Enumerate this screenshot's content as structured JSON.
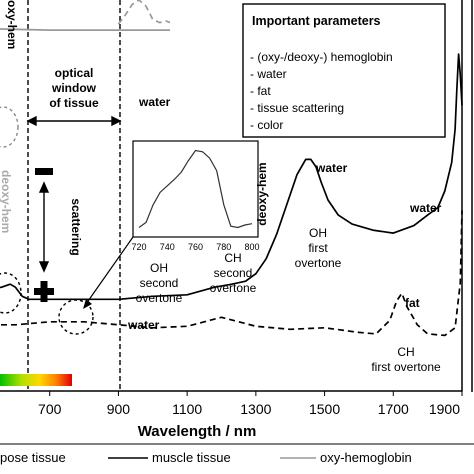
{
  "chart_data": {
    "type": "line",
    "xlabel": "Wavelength / nm",
    "xlim": [
      500,
      1900
    ],
    "x_ticks": [
      "700",
      "900",
      "1100",
      "1300",
      "1500",
      "1700",
      "1900"
    ],
    "series": [
      {
        "name": "muscle tissue",
        "style": "solid",
        "color": "#000000",
        "x": [
          500,
          560,
          585,
          600,
          620,
          640,
          700,
          800,
          900,
          1000,
          1100,
          1180,
          1230,
          1270,
          1300,
          1330,
          1360,
          1390,
          1420,
          1445,
          1460,
          1475,
          1490,
          1510,
          1540,
          1580,
          1640,
          1700,
          1760,
          1800,
          1830,
          1850,
          1870,
          1880,
          1885,
          1890,
          1895,
          1900
        ],
        "y": [
          0.33,
          0.345,
          0.355,
          0.345,
          0.315,
          0.305,
          0.305,
          0.305,
          0.305,
          0.315,
          0.32,
          0.345,
          0.355,
          0.365,
          0.39,
          0.44,
          0.52,
          0.62,
          0.72,
          0.77,
          0.77,
          0.745,
          0.695,
          0.635,
          0.585,
          0.555,
          0.535,
          0.525,
          0.55,
          0.585,
          0.61,
          0.665,
          0.76,
          0.87,
          1.0,
          1.12,
          1.05,
          0.95
        ]
      },
      {
        "name": "",
        "style": "dashed",
        "color": "#000000",
        "x": [
          500,
          600,
          700,
          800,
          900,
          1000,
          1100,
          1150,
          1200,
          1250,
          1300,
          1400,
          1500,
          1600,
          1650,
          1690,
          1710,
          1725,
          1740,
          1755,
          1770,
          1800,
          1850,
          1880,
          1895,
          1900
        ],
        "y": [
          0.22,
          0.22,
          0.23,
          0.23,
          0.22,
          0.21,
          0.215,
          0.23,
          0.245,
          0.23,
          0.215,
          0.205,
          0.21,
          0.195,
          0.19,
          0.235,
          0.3,
          0.325,
          0.28,
          0.25,
          0.22,
          0.19,
          0.185,
          0.21,
          0.36,
          0.6
        ]
      },
      {
        "name": "",
        "style": "dashed",
        "color": "#999999",
        "x": [
          900,
          920,
          940,
          960,
          980,
          1000,
          1020,
          1040,
          1050
        ],
        "y": [
          1.22,
          1.25,
          1.285,
          1.3,
          1.28,
          1.235,
          1.225,
          1.23,
          1.225
        ]
      },
      {
        "name": "",
        "style": "solid",
        "color": "#999999",
        "x": [
          500,
          700,
          900,
          1050
        ],
        "y": [
          1.205,
          1.2,
          1.2,
          1.2
        ]
      }
    ],
    "inset": {
      "xlabel_ticks": [
        "720",
        "740",
        "760",
        "780",
        "800"
      ],
      "ylabel": "deoxy-hem",
      "x": [
        720,
        725,
        730,
        735,
        740,
        745,
        750,
        755,
        760,
        765,
        770,
        775,
        780,
        785,
        790,
        795,
        800
      ],
      "y": [
        0.32,
        0.36,
        0.5,
        0.6,
        0.65,
        0.7,
        0.76,
        0.85,
        0.93,
        0.92,
        0.87,
        0.77,
        0.5,
        0.33,
        0.32,
        0.34,
        0.35
      ]
    },
    "annotations": {
      "window_title_1": "optical",
      "window_title_2": "window",
      "window_title_3": "of tissue",
      "water_top": "water",
      "water_mid": "water",
      "water_right": "water",
      "water_low": "water",
      "scattering": "scattering",
      "oh_second_1": "OH",
      "oh_second_2": "second",
      "oh_second_3": "overtone",
      "ch_second_1": "CH",
      "ch_second_2": "second",
      "ch_second_3": "overtone",
      "oh_first_1": "OH",
      "oh_first_2": "first",
      "oh_first_3": "overtone",
      "fat": "fat",
      "ch_first_1": "CH",
      "ch_first_2": "first overtone",
      "left_cut_top": "oxy-hem",
      "left_cut_mid": "deoxy-hem"
    },
    "params_box": {
      "title": "Important parameters",
      "items": [
        "- (oxy-/deoxy-) hemoglobin",
        "- water",
        "- fat",
        "- tissue scattering",
        "- color"
      ]
    },
    "legend": [
      {
        "label": "pose tissue",
        "style": "dashed",
        "color": "#000000"
      },
      {
        "label": "muscle tissue",
        "style": "solid",
        "color": "#000000"
      },
      {
        "label": "oxy-hemoglobin",
        "style": "solid",
        "color": "#999999"
      }
    ],
    "colors": {
      "spectrum_bar": [
        "#00c000",
        "#b0e000",
        "#ffd800",
        "#ff8000",
        "#e00000"
      ]
    }
  }
}
